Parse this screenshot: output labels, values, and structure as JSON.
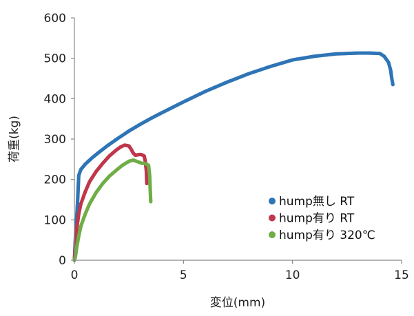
{
  "chart_data": {
    "type": "scatter",
    "xlabel": "変位(mm)",
    "ylabel": "荷重(kg)",
    "xlim": [
      0,
      15
    ],
    "ylim": [
      0,
      600
    ],
    "xticks": [
      "0",
      "5",
      "10",
      "15"
    ],
    "yticks": [
      "0",
      "100",
      "200",
      "300",
      "400",
      "500",
      "600"
    ],
    "legend_position": "bottom-right",
    "grid": false,
    "series": [
      {
        "name": "hump無し RT",
        "color": "#2E75B6",
        "x": [
          0.0,
          0.05,
          0.1,
          0.15,
          0.2,
          0.3,
          0.5,
          0.8,
          1.0,
          1.5,
          2.0,
          2.5,
          3.0,
          3.5,
          4.0,
          5.0,
          6.0,
          7.0,
          8.0,
          9.0,
          10.0,
          11.0,
          12.0,
          12.5,
          13.0,
          13.5,
          14.0,
          14.2,
          14.4,
          14.5,
          14.55,
          14.6
        ],
        "y": [
          0,
          60,
          100,
          150,
          210,
          225,
          238,
          253,
          262,
          283,
          302,
          320,
          336,
          351,
          365,
          392,
          418,
          441,
          462,
          480,
          496,
          505,
          511,
          512,
          513,
          513,
          512,
          505,
          490,
          470,
          450,
          435
        ]
      },
      {
        "name": "hump有り RT",
        "color": "#C0364A",
        "x": [
          0.0,
          0.05,
          0.1,
          0.2,
          0.3,
          0.5,
          0.7,
          1.0,
          1.3,
          1.6,
          1.9,
          2.1,
          2.3,
          2.5,
          2.6,
          2.7,
          2.8,
          3.0,
          3.1,
          3.2,
          3.25,
          3.3,
          3.32
        ],
        "y": [
          0,
          40,
          75,
          115,
          140,
          170,
          195,
          220,
          240,
          258,
          272,
          280,
          285,
          283,
          275,
          265,
          260,
          262,
          261,
          258,
          245,
          220,
          190
        ]
      },
      {
        "name": "hump有り 320℃",
        "color": "#70AD47",
        "x": [
          0.0,
          0.05,
          0.1,
          0.2,
          0.3,
          0.5,
          0.7,
          1.0,
          1.3,
          1.6,
          1.9,
          2.2,
          2.5,
          2.7,
          2.8,
          3.0,
          3.1,
          3.2,
          3.3,
          3.4,
          3.45,
          3.48,
          3.5
        ],
        "y": [
          0,
          10,
          30,
          60,
          85,
          115,
          140,
          168,
          190,
          208,
          222,
          235,
          245,
          248,
          246,
          242,
          240,
          240,
          238,
          235,
          210,
          170,
          145
        ]
      }
    ]
  }
}
